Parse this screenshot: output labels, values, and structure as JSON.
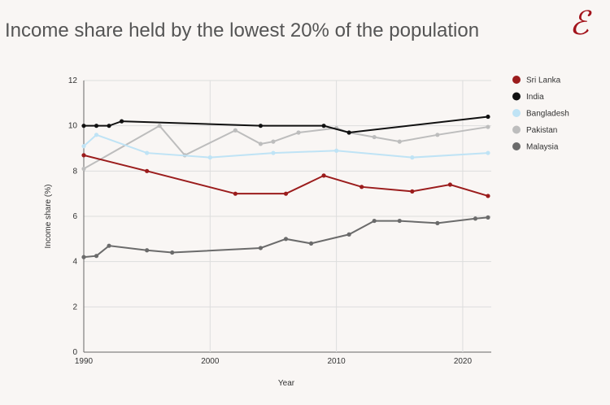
{
  "chart_data": {
    "type": "line",
    "title": "Income share held by the lowest 20% of the population",
    "xlabel": "Year",
    "ylabel": "Income share (%)",
    "xlim": [
      1990,
      2022
    ],
    "ylim": [
      0,
      12
    ],
    "xticks": [
      "1990",
      "2000",
      "2010",
      "2020"
    ],
    "yticks": [
      "0",
      "2",
      "4",
      "6",
      "8",
      "10",
      "12"
    ],
    "grid": true,
    "legend_position": "right",
    "series": [
      {
        "name": "Sri Lanka",
        "color": "#9b1c1c",
        "points": [
          [
            1990,
            8.7
          ],
          [
            1995,
            8.0
          ],
          [
            2002,
            7.0
          ],
          [
            2006,
            7.0
          ],
          [
            2009,
            7.8
          ],
          [
            2012,
            7.3
          ],
          [
            2016,
            7.1
          ],
          [
            2019,
            7.4
          ],
          [
            2022,
            6.9
          ]
        ]
      },
      {
        "name": "India",
        "color": "#111111",
        "points": [
          [
            1990,
            10.0
          ],
          [
            1991,
            10.0
          ],
          [
            1992,
            10.0
          ],
          [
            1993,
            10.2
          ],
          [
            2004,
            10.0
          ],
          [
            2009,
            10.0
          ],
          [
            2011,
            9.7
          ],
          [
            2022,
            10.4
          ]
        ]
      },
      {
        "name": "Bangladesh",
        "color": "#bfe3f5",
        "points": [
          [
            1990,
            9.1
          ],
          [
            1991,
            9.6
          ],
          [
            1995,
            8.8
          ],
          [
            2000,
            8.6
          ],
          [
            2005,
            8.8
          ],
          [
            2010,
            8.9
          ],
          [
            2016,
            8.6
          ],
          [
            2022,
            8.8
          ]
        ]
      },
      {
        "name": "Pakistan",
        "color": "#bdbdbd",
        "points": [
          [
            1990,
            8.1
          ],
          [
            1996,
            10.0
          ],
          [
            1998,
            8.7
          ],
          [
            2002,
            9.8
          ],
          [
            2004,
            9.2
          ],
          [
            2005,
            9.3
          ],
          [
            2007,
            9.7
          ],
          [
            2010,
            9.9
          ],
          [
            2011,
            9.7
          ],
          [
            2013,
            9.5
          ],
          [
            2015,
            9.3
          ],
          [
            2018,
            9.6
          ],
          [
            2022,
            9.95
          ]
        ]
      },
      {
        "name": "Malaysia",
        "color": "#6b6b6b",
        "points": [
          [
            1990,
            4.2
          ],
          [
            1991,
            4.25
          ],
          [
            1992,
            4.7
          ],
          [
            1995,
            4.5
          ],
          [
            1997,
            4.4
          ],
          [
            2004,
            4.6
          ],
          [
            2006,
            5.0
          ],
          [
            2008,
            4.8
          ],
          [
            2011,
            5.2
          ],
          [
            2013,
            5.8
          ],
          [
            2015,
            5.8
          ],
          [
            2018,
            5.7
          ],
          [
            2021,
            5.9
          ],
          [
            2022,
            5.95
          ]
        ]
      }
    ]
  },
  "logo_text": "E"
}
